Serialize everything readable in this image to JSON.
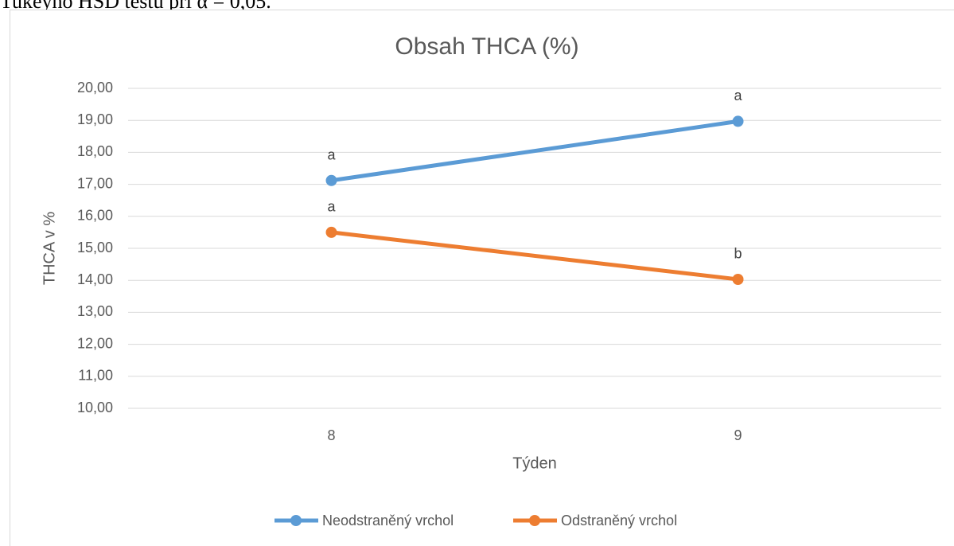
{
  "caption": "Tukeyho HSD testu při α = 0,05.",
  "chart_data": {
    "type": "line",
    "title": "Obsah THCA (%)",
    "x_label": "Týden",
    "y_label": "THCA v %",
    "categories": [
      "8",
      "9"
    ],
    "series": [
      {
        "name": "Neodstraněný vrchol",
        "color": "#5b9bd5",
        "values": [
          17.12,
          18.97
        ],
        "annotations": [
          "a",
          "a"
        ]
      },
      {
        "name": "Odstraněný vrchol",
        "color": "#ed7d31",
        "values": [
          15.5,
          14.03
        ],
        "annotations": [
          "a",
          "b"
        ]
      }
    ],
    "ylim": [
      10,
      20
    ],
    "yticks": [
      {
        "value": 10,
        "label": "10,00"
      },
      {
        "value": 11,
        "label": "11,00"
      },
      {
        "value": 12,
        "label": "12,00"
      },
      {
        "value": 13,
        "label": "13,00"
      },
      {
        "value": 14,
        "label": "14,00"
      },
      {
        "value": 15,
        "label": "15,00"
      },
      {
        "value": 16,
        "label": "16,00"
      },
      {
        "value": 17,
        "label": "17,00"
      },
      {
        "value": 18,
        "label": "18,00"
      },
      {
        "value": 19,
        "label": "19,00"
      },
      {
        "value": 20,
        "label": "20,00"
      }
    ],
    "grid": true,
    "legend": "bottom"
  }
}
